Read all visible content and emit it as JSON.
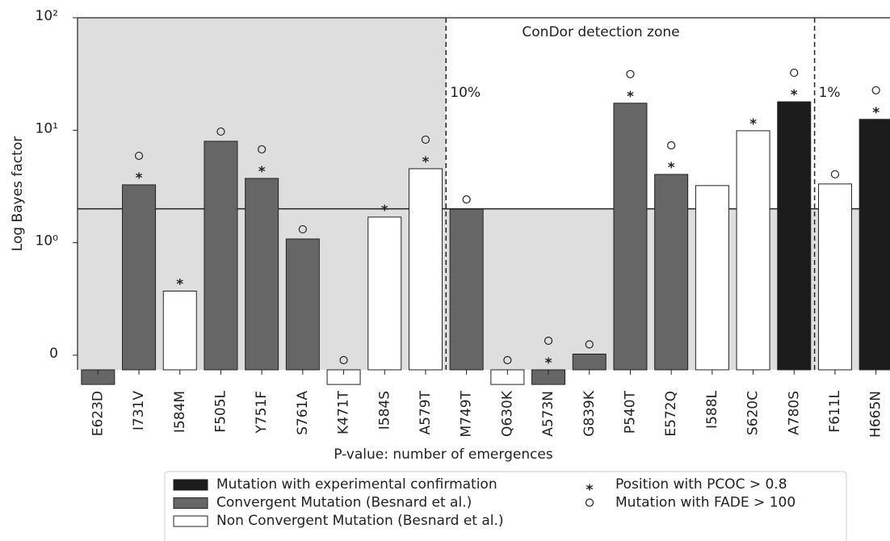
{
  "chart_data": {
    "type": "bar",
    "categories": [
      "E623D",
      "I731V",
      "I584M",
      "F505L",
      "Y751F",
      "S761A",
      "K471T",
      "I584S",
      "A579T",
      "M749T",
      "Q630K",
      "A573N",
      "G839K",
      "P540T",
      "E572Q",
      "I588L",
      "S620C",
      "A780S",
      "F611L",
      "H665N"
    ],
    "values": [
      -0.26,
      3.27,
      0.57,
      7.98,
      3.73,
      1.08,
      -0.26,
      1.69,
      4.55,
      1.99,
      -0.26,
      -0.26,
      0.01,
      17.4,
      4.05,
      3.22,
      9.9,
      17.9,
      3.33,
      12.5
    ],
    "group": [
      1,
      1,
      2,
      1,
      1,
      1,
      2,
      2,
      2,
      1,
      2,
      1,
      1,
      1,
      1,
      2,
      2,
      0,
      2,
      0
    ],
    "groups": [
      {
        "name": "Mutation with experimental confirmation",
        "color": "#1c1c1c"
      },
      {
        "name": "Convergent Mutation (Besnard et al.)",
        "color": "#666666"
      },
      {
        "name": "Non Convergent Mutation (Besnard et al.)",
        "color": "#ffffff"
      }
    ],
    "pcoc": [
      false,
      true,
      true,
      false,
      true,
      false,
      false,
      true,
      true,
      false,
      false,
      true,
      false,
      true,
      true,
      false,
      true,
      true,
      false,
      true
    ],
    "fade": [
      false,
      true,
      false,
      true,
      true,
      true,
      true,
      false,
      true,
      true,
      true,
      true,
      true,
      true,
      true,
      false,
      false,
      true,
      true,
      true
    ],
    "markers": [
      {
        "name": "Position with PCOC > 0.8",
        "symbol": "*"
      },
      {
        "name": "Mutation with FADE > 100"
      }
    ],
    "xlabel": "P-value: number of emergences",
    "ylabel": "Log Bayes factor",
    "yscale": "symlog",
    "linthresh": 1,
    "ylim": [
      -0.13,
      100
    ],
    "yticks": [
      0,
      {
        "value": 1,
        "label": "10⁰"
      },
      {
        "value": 10,
        "label": "10¹"
      },
      {
        "value": 100,
        "label": "10²"
      }
    ],
    "threshold": 2,
    "zone_title": "ConDor detection zone",
    "zone_lines": [
      {
        "label": "10%",
        "after_category": "A579T"
      },
      {
        "label": "1%",
        "after_category": "A780S"
      }
    ]
  }
}
